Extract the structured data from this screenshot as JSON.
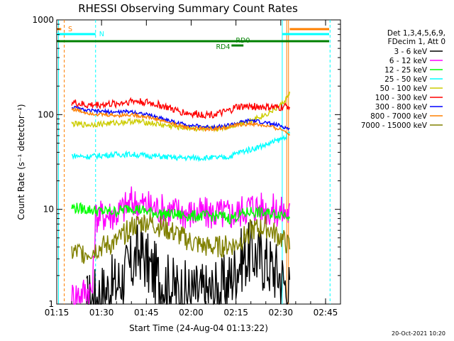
{
  "page": {
    "footer_date": "20-Oct-2021 10:20"
  },
  "chart_data": {
    "type": "line",
    "title": "RHESSI Observing Summary Count Rates",
    "xlabel": "Start Time (24-Aug-04 01:13:22)",
    "ylabel": "Count Rate (s⁻¹ detector⁻¹)",
    "yscale": "log",
    "ylim": [
      1,
      1000
    ],
    "xlim_minutes": [
      75,
      170
    ],
    "grid": false,
    "legend_position": "right",
    "x_ticks": [
      {
        "t": 75,
        "label": "01:15"
      },
      {
        "t": 90,
        "label": "01:30"
      },
      {
        "t": 105,
        "label": "01:45"
      },
      {
        "t": 120,
        "label": "02:00"
      },
      {
        "t": 135,
        "label": "02:15"
      },
      {
        "t": 150,
        "label": "02:30"
      },
      {
        "t": 165,
        "label": "02:45"
      }
    ],
    "y_ticks": [
      {
        "v": 1,
        "label": "1"
      },
      {
        "v": 10,
        "label": "10"
      },
      {
        "v": 100,
        "label": "100"
      },
      {
        "v": 1000,
        "label": "1000"
      }
    ],
    "legend_header": [
      "Det 1,3,4,5,6,9,",
      "FDecim 1, Att 0"
    ],
    "series": [
      {
        "name": "3 - 6 keV",
        "color": "#000000",
        "x": [
          85,
          90,
          95,
          100,
          103,
          106,
          110,
          115,
          120,
          125,
          130,
          133,
          136,
          140,
          145,
          150,
          153
        ],
        "y": [
          1,
          1.3,
          1.6,
          2.5,
          3.8,
          2.4,
          1.8,
          1.4,
          1.3,
          1.3,
          1.4,
          1.8,
          2.8,
          3.5,
          2.8,
          2.0,
          1.3
        ]
      },
      {
        "name": "6 - 12 keV",
        "color": "#ff00ff",
        "x": [
          80,
          85,
          87,
          88,
          95,
          100,
          105,
          110,
          115,
          120,
          125,
          130,
          135,
          140,
          145,
          150,
          153
        ],
        "y": [
          1.2,
          1.4,
          1.4,
          8.5,
          9.0,
          12.0,
          11.0,
          10.0,
          9.5,
          9.0,
          9.0,
          9.0,
          9.0,
          11.0,
          10.0,
          9.5,
          9.0
        ]
      },
      {
        "name": "12 - 25 keV",
        "color": "#00ff00",
        "x": [
          80,
          85,
          90,
          95,
          100,
          105,
          110,
          115,
          120,
          125,
          130,
          133,
          135,
          140,
          145,
          150,
          153
        ],
        "y": [
          10.5,
          10.0,
          9.5,
          9.5,
          10.5,
          9.5,
          9.0,
          8.8,
          8.5,
          8.5,
          8.5,
          8.0,
          8.5,
          9.5,
          9.0,
          9.0,
          8.8
        ]
      },
      {
        "name": "25 - 50 keV",
        "color": "#00ffff",
        "x": [
          80,
          85,
          90,
          95,
          100,
          105,
          110,
          115,
          120,
          125,
          130,
          133,
          136,
          140,
          145,
          150,
          153
        ],
        "y": [
          37,
          36,
          37,
          38,
          38,
          37,
          36,
          35,
          35,
          35,
          35,
          36,
          40,
          43,
          48,
          55,
          63
        ]
      },
      {
        "name": "50 - 100 keV",
        "color": "#cccc00",
        "x": [
          80,
          85,
          90,
          95,
          100,
          105,
          110,
          115,
          120,
          125,
          130,
          133,
          136,
          140,
          145,
          150,
          153
        ],
        "y": [
          80,
          78,
          80,
          82,
          85,
          83,
          78,
          74,
          72,
          70,
          72,
          75,
          80,
          88,
          100,
          125,
          165
        ]
      },
      {
        "name": "100 - 300 keV",
        "color": "#ff0000",
        "x": [
          80,
          85,
          90,
          95,
          100,
          105,
          110,
          115,
          120,
          125,
          130,
          133,
          135,
          140,
          145,
          150,
          153
        ],
        "y": [
          135,
          125,
          128,
          130,
          140,
          135,
          125,
          110,
          102,
          100,
          103,
          110,
          120,
          122,
          120,
          118,
          125
        ]
      },
      {
        "name": "300 - 800 keV",
        "color": "#0000ff",
        "x": [
          80,
          85,
          90,
          95,
          100,
          105,
          110,
          115,
          120,
          125,
          130,
          133,
          136,
          140,
          145,
          150,
          153
        ],
        "y": [
          120,
          110,
          108,
          106,
          108,
          100,
          92,
          82,
          77,
          74,
          75,
          78,
          82,
          87,
          82,
          76,
          70
        ]
      },
      {
        "name": "800 - 7000 keV",
        "color": "#ff8000",
        "x": [
          80,
          85,
          90,
          95,
          100,
          105,
          110,
          115,
          120,
          125,
          130,
          133,
          136,
          140,
          145,
          150,
          153
        ],
        "y": [
          115,
          105,
          100,
          98,
          100,
          95,
          87,
          78,
          72,
          70,
          72,
          75,
          78,
          80,
          76,
          70,
          63
        ]
      },
      {
        "name": "7000 - 15000 keV",
        "color": "#808000",
        "x": [
          80,
          85,
          90,
          95,
          100,
          105,
          110,
          115,
          120,
          125,
          130,
          133,
          135,
          140,
          145,
          150,
          153
        ],
        "y": [
          3.5,
          3.5,
          4.0,
          4.5,
          6.5,
          7.5,
          6.5,
          5.5,
          4.5,
          4.0,
          4.0,
          4.2,
          4.2,
          6.0,
          6.5,
          5.0,
          4.0
        ]
      }
    ],
    "annotations": {
      "labels": [
        {
          "text": "S",
          "color": "#ff8000"
        },
        {
          "text": "N",
          "color": "#00ffff"
        },
        {
          "text": "RD0",
          "color": "#008000"
        },
        {
          "text": "RD4",
          "color": "#008000"
        }
      ]
    }
  }
}
